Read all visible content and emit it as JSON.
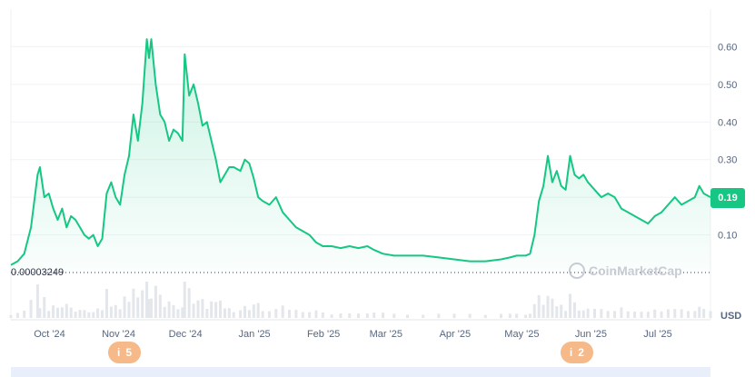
{
  "chart_data": {
    "type": "area",
    "xlabel": "",
    "ylabel": "",
    "currency": "USD",
    "y_ticks": [
      "0.10",
      "0.20",
      "0.30",
      "0.40",
      "0.50",
      "0.60"
    ],
    "y_tick_values": [
      0.1,
      0.2,
      0.3,
      0.4,
      0.5,
      0.6
    ],
    "ylim": [
      0,
      0.7
    ],
    "x_labels": [
      "Oct '24",
      "Nov '24",
      "Dec '24",
      "Jan '25",
      "Feb '25",
      "Mar '25",
      "Apr '25",
      "May '25",
      "Jun '25",
      "Jul '25"
    ],
    "x_range": [
      "2024-09-21",
      "2025-08-01"
    ],
    "current_price_label": "0.19",
    "baseline_label": "0.00003249",
    "grid": true,
    "colors": {
      "line": "#16c784",
      "fill_top": "#16c784",
      "badge": "#f5b98a",
      "volume": "#e3e6ea"
    },
    "series": [
      {
        "points": [
          [
            "2024-09-21",
            0.02
          ],
          [
            "2024-09-24",
            0.03
          ],
          [
            "2024-09-27",
            0.05
          ],
          [
            "2024-09-30",
            0.12
          ],
          [
            "2024-10-03",
            0.26
          ],
          [
            "2024-10-04",
            0.28
          ],
          [
            "2024-10-06",
            0.2
          ],
          [
            "2024-10-08",
            0.21
          ],
          [
            "2024-10-10",
            0.17
          ],
          [
            "2024-10-12",
            0.14
          ],
          [
            "2024-10-14",
            0.17
          ],
          [
            "2024-10-16",
            0.12
          ],
          [
            "2024-10-18",
            0.15
          ],
          [
            "2024-10-20",
            0.14
          ],
          [
            "2024-10-22",
            0.12
          ],
          [
            "2024-10-24",
            0.1
          ],
          [
            "2024-10-26",
            0.09
          ],
          [
            "2024-10-28",
            0.1
          ],
          [
            "2024-10-30",
            0.07
          ],
          [
            "2024-11-01",
            0.09
          ],
          [
            "2024-11-03",
            0.21
          ],
          [
            "2024-11-05",
            0.24
          ],
          [
            "2024-11-07",
            0.2
          ],
          [
            "2024-11-09",
            0.18
          ],
          [
            "2024-11-11",
            0.26
          ],
          [
            "2024-11-13",
            0.31
          ],
          [
            "2024-11-15",
            0.42
          ],
          [
            "2024-11-17",
            0.35
          ],
          [
            "2024-11-19",
            0.45
          ],
          [
            "2024-11-21",
            0.62
          ],
          [
            "2024-11-22",
            0.57
          ],
          [
            "2024-11-23",
            0.62
          ],
          [
            "2024-11-25",
            0.5
          ],
          [
            "2024-11-27",
            0.42
          ],
          [
            "2024-11-29",
            0.4
          ],
          [
            "2024-12-01",
            0.35
          ],
          [
            "2024-12-03",
            0.38
          ],
          [
            "2024-12-05",
            0.37
          ],
          [
            "2024-12-07",
            0.35
          ],
          [
            "2024-12-08",
            0.58
          ],
          [
            "2024-12-10",
            0.47
          ],
          [
            "2024-12-12",
            0.5
          ],
          [
            "2024-12-14",
            0.45
          ],
          [
            "2024-12-16",
            0.39
          ],
          [
            "2024-12-18",
            0.4
          ],
          [
            "2024-12-20",
            0.35
          ],
          [
            "2024-12-22",
            0.3
          ],
          [
            "2024-12-24",
            0.24
          ],
          [
            "2024-12-26",
            0.26
          ],
          [
            "2024-12-28",
            0.28
          ],
          [
            "2024-12-30",
            0.28
          ],
          [
            "2025-01-02",
            0.27
          ],
          [
            "2025-01-04",
            0.3
          ],
          [
            "2025-01-06",
            0.29
          ],
          [
            "2025-01-08",
            0.25
          ],
          [
            "2025-01-10",
            0.2
          ],
          [
            "2025-01-12",
            0.19
          ],
          [
            "2025-01-15",
            0.18
          ],
          [
            "2025-01-18",
            0.2
          ],
          [
            "2025-01-21",
            0.16
          ],
          [
            "2025-01-24",
            0.14
          ],
          [
            "2025-01-27",
            0.12
          ],
          [
            "2025-01-30",
            0.11
          ],
          [
            "2025-02-02",
            0.1
          ],
          [
            "2025-02-05",
            0.08
          ],
          [
            "2025-02-08",
            0.07
          ],
          [
            "2025-02-12",
            0.07
          ],
          [
            "2025-02-16",
            0.065
          ],
          [
            "2025-02-20",
            0.07
          ],
          [
            "2025-02-24",
            0.065
          ],
          [
            "2025-02-28",
            0.07
          ],
          [
            "2025-03-03",
            0.06
          ],
          [
            "2025-03-07",
            0.05
          ],
          [
            "2025-03-12",
            0.045
          ],
          [
            "2025-03-18",
            0.045
          ],
          [
            "2025-03-25",
            0.045
          ],
          [
            "2025-04-01",
            0.04
          ],
          [
            "2025-04-08",
            0.035
          ],
          [
            "2025-04-15",
            0.03
          ],
          [
            "2025-04-22",
            0.03
          ],
          [
            "2025-04-29",
            0.035
          ],
          [
            "2025-05-03",
            0.04
          ],
          [
            "2025-05-06",
            0.045
          ],
          [
            "2025-05-10",
            0.045
          ],
          [
            "2025-05-12",
            0.05
          ],
          [
            "2025-05-14",
            0.1
          ],
          [
            "2025-05-16",
            0.19
          ],
          [
            "2025-05-18",
            0.23
          ],
          [
            "2025-05-20",
            0.31
          ],
          [
            "2025-05-22",
            0.24
          ],
          [
            "2025-05-24",
            0.27
          ],
          [
            "2025-05-26",
            0.23
          ],
          [
            "2025-05-28",
            0.22
          ],
          [
            "2025-05-30",
            0.31
          ],
          [
            "2025-06-01",
            0.26
          ],
          [
            "2025-06-03",
            0.25
          ],
          [
            "2025-06-05",
            0.26
          ],
          [
            "2025-06-07",
            0.24
          ],
          [
            "2025-06-10",
            0.22
          ],
          [
            "2025-06-13",
            0.2
          ],
          [
            "2025-06-16",
            0.21
          ],
          [
            "2025-06-19",
            0.2
          ],
          [
            "2025-06-22",
            0.17
          ],
          [
            "2025-06-25",
            0.16
          ],
          [
            "2025-06-28",
            0.15
          ],
          [
            "2025-07-01",
            0.14
          ],
          [
            "2025-07-04",
            0.13
          ],
          [
            "2025-07-07",
            0.15
          ],
          [
            "2025-07-10",
            0.16
          ],
          [
            "2025-07-13",
            0.18
          ],
          [
            "2025-07-16",
            0.2
          ],
          [
            "2025-07-19",
            0.18
          ],
          [
            "2025-07-22",
            0.19
          ],
          [
            "2025-07-25",
            0.2
          ],
          [
            "2025-07-27",
            0.23
          ],
          [
            "2025-07-29",
            0.21
          ],
          [
            "2025-08-01",
            0.2
          ]
        ]
      }
    ],
    "events": [
      {
        "date": "2024-11-11",
        "count": "5",
        "icon": "info-icon"
      },
      {
        "date": "2025-06-02",
        "count": "2",
        "icon": "info-icon"
      }
    ]
  },
  "watermark": {
    "text": "CoinMarketCap"
  }
}
